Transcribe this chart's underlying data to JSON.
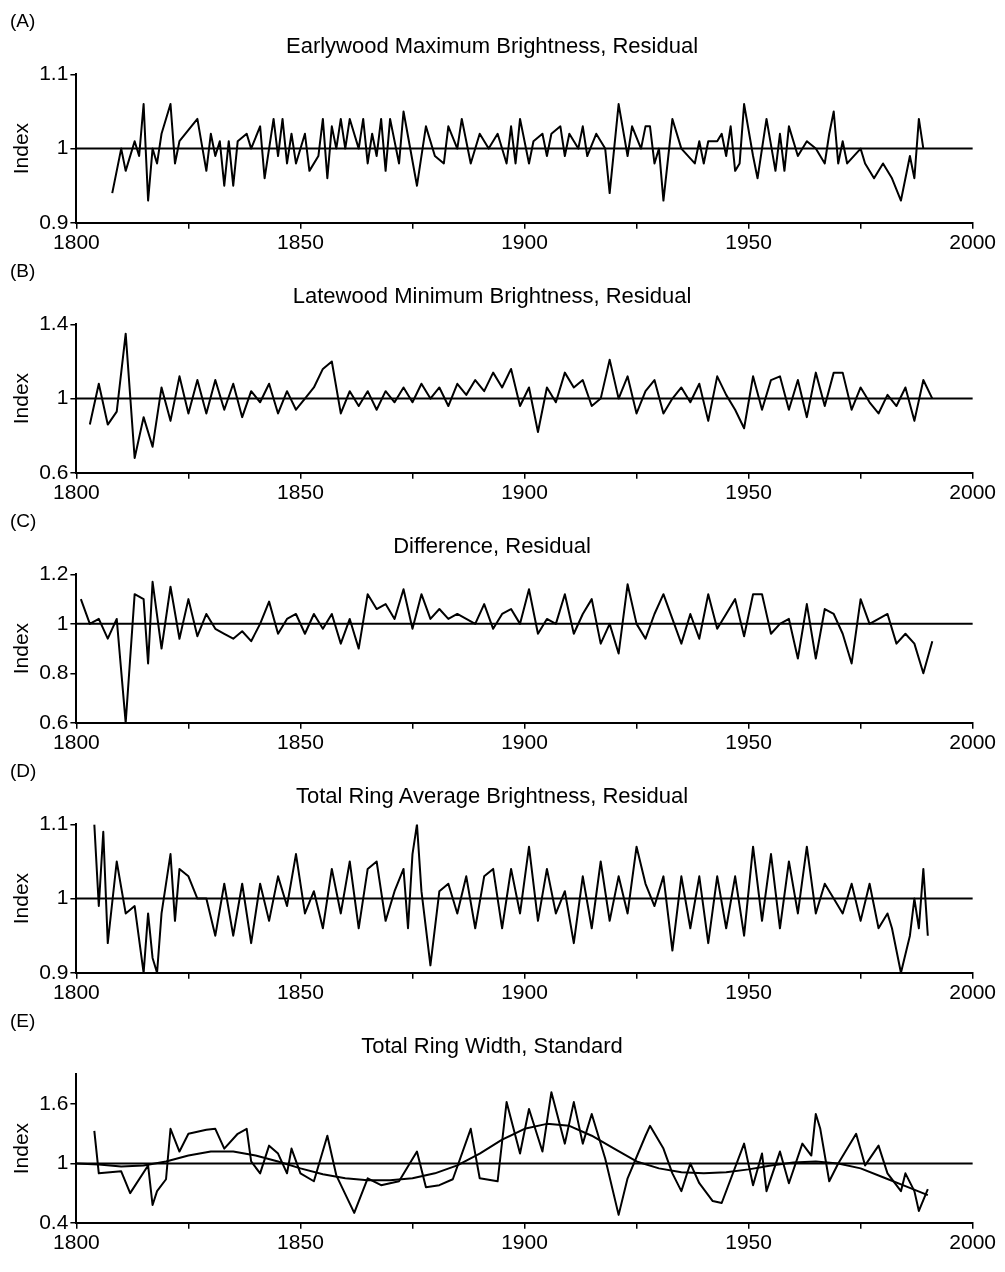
{
  "chart_data": [
    {
      "type": "line",
      "title": "Earlywood Maximum Brightness, Residual",
      "ylabel": "Index",
      "annotations": [
        "(A)"
      ],
      "xlim": [
        1800,
        2000
      ],
      "xticks": [
        1800,
        {
          "value": 1825,
          "label": null
        },
        1850,
        {
          "value": 1875,
          "label": null
        },
        1900,
        {
          "value": 1925,
          "label": null
        },
        1950,
        {
          "value": 1975,
          "label": null
        },
        2000
      ],
      "ylim": [
        0.9,
        1.1
      ],
      "yticks": [
        0.9,
        1,
        1.1
      ],
      "grid": false,
      "ref_lines": [
        {
          "axis": "y",
          "value": 1,
          "color": "#000000"
        }
      ],
      "series": [
        {
          "color": "#000000",
          "x": [
            1808,
            1810,
            1811,
            1813,
            1814,
            1815,
            1816,
            1817,
            1818,
            1819,
            1821,
            1822,
            1823,
            1827,
            1829,
            1830,
            1831,
            1832,
            1833,
            1834,
            1835,
            1836,
            1838,
            1839,
            1841,
            1842,
            1844,
            1845,
            1846,
            1847,
            1848,
            1849,
            1851,
            1852,
            1854,
            1855,
            1856,
            1857,
            1858,
            1859,
            1860,
            1861,
            1863,
            1864,
            1865,
            1866,
            1867,
            1868,
            1869,
            1870,
            1872,
            1873,
            1876,
            1878,
            1880,
            1882,
            1883,
            1885,
            1886,
            1888,
            1890,
            1892,
            1894,
            1896,
            1897,
            1898,
            1899,
            1901,
            1902,
            1904,
            1905,
            1906,
            1908,
            1909,
            1910,
            1912,
            1913,
            1914,
            1916,
            1918,
            1919,
            1920,
            1921,
            1923,
            1924,
            1926,
            1927,
            1928,
            1929,
            1930,
            1931,
            1933,
            1935,
            1938,
            1939,
            1940,
            1941,
            1943,
            1944,
            1945,
            1946,
            1947,
            1948,
            1949,
            1951,
            1952,
            1954,
            1956,
            1957,
            1958,
            1959,
            1961,
            1963,
            1965,
            1967,
            1968,
            1969,
            1970,
            1971,
            1972,
            1975,
            1976,
            1978,
            1980,
            1982,
            1984,
            1986,
            1987,
            1988,
            1989
          ],
          "values": [
            0.94,
            1.0,
            0.97,
            1.01,
            0.99,
            1.06,
            0.93,
            1.0,
            0.98,
            1.02,
            1.06,
            0.98,
            1.01,
            1.04,
            0.97,
            1.02,
            0.99,
            1.01,
            0.95,
            1.01,
            0.95,
            1.01,
            1.02,
            1.0,
            1.03,
            0.96,
            1.04,
            0.99,
            1.04,
            0.98,
            1.02,
            0.98,
            1.02,
            0.97,
            0.99,
            1.04,
            0.96,
            1.03,
            1.0,
            1.04,
            1.0,
            1.04,
            1.0,
            1.04,
            0.98,
            1.02,
            0.99,
            1.04,
            0.97,
            1.04,
            0.98,
            1.05,
            0.95,
            1.03,
            0.99,
            0.98,
            1.03,
            1.0,
            1.04,
            0.98,
            1.02,
            1.0,
            1.02,
            0.98,
            1.03,
            0.98,
            1.04,
            0.98,
            1.01,
            1.02,
            0.99,
            1.02,
            1.03,
            0.99,
            1.02,
            1.0,
            1.03,
            0.99,
            1.02,
            1.0,
            0.94,
            1.0,
            1.06,
            0.99,
            1.03,
            1.0,
            1.03,
            1.03,
            0.98,
            1.0,
            0.93,
            1.04,
            1.0,
            0.98,
            1.01,
            0.98,
            1.01,
            1.01,
            1.02,
            0.99,
            1.03,
            0.97,
            0.98,
            1.06,
            0.99,
            0.96,
            1.04,
            0.97,
            1.02,
            0.97,
            1.03,
            0.99,
            1.01,
            1.0,
            0.98,
            1.02,
            1.05,
            0.98,
            1.01,
            0.98,
            1.0,
            0.98,
            0.96,
            0.98,
            0.96,
            0.93,
            0.99,
            0.96,
            1.04,
            1.0
          ]
        }
      ]
    },
    {
      "type": "line",
      "title": "Latewood Minimum Brightness, Residual",
      "ylabel": "Index",
      "annotations": [
        "(B)"
      ],
      "xlim": [
        1800,
        2000
      ],
      "xticks": [
        1800,
        {
          "value": 1825,
          "label": null
        },
        1850,
        {
          "value": 1875,
          "label": null
        },
        1900,
        {
          "value": 1925,
          "label": null
        },
        1950,
        {
          "value": 1975,
          "label": null
        },
        2000
      ],
      "ylim": [
        0.6,
        1.4
      ],
      "yticks": [
        0.6,
        1,
        1.4
      ],
      "grid": false,
      "ref_lines": [
        {
          "axis": "y",
          "value": 1,
          "color": "#000000"
        }
      ],
      "series": [
        {
          "color": "#000000",
          "x": [
            1803,
            1805,
            1807,
            1809,
            1811,
            1813,
            1815,
            1817,
            1819,
            1821,
            1823,
            1825,
            1827,
            1829,
            1831,
            1833,
            1835,
            1837,
            1839,
            1841,
            1843,
            1845,
            1847,
            1849,
            1851,
            1853,
            1855,
            1857,
            1859,
            1861,
            1863,
            1865,
            1867,
            1869,
            1871,
            1873,
            1875,
            1877,
            1879,
            1881,
            1883,
            1885,
            1887,
            1889,
            1891,
            1893,
            1895,
            1897,
            1899,
            1901,
            1903,
            1905,
            1907,
            1909,
            1911,
            1913,
            1915,
            1917,
            1919,
            1921,
            1923,
            1925,
            1927,
            1929,
            1931,
            1933,
            1935,
            1937,
            1939,
            1941,
            1943,
            1945,
            1947,
            1949,
            1951,
            1953,
            1955,
            1957,
            1959,
            1961,
            1963,
            1965,
            1967,
            1969,
            1971,
            1973,
            1975,
            1977,
            1979,
            1981,
            1983,
            1985,
            1987,
            1989,
            1991
          ],
          "values": [
            0.86,
            1.08,
            0.86,
            0.93,
            1.35,
            0.68,
            0.9,
            0.74,
            1.06,
            0.88,
            1.12,
            0.92,
            1.1,
            0.92,
            1.1,
            0.94,
            1.08,
            0.9,
            1.04,
            0.98,
            1.08,
            0.92,
            1.04,
            0.94,
            1.0,
            1.06,
            1.16,
            1.2,
            0.92,
            1.04,
            0.96,
            1.04,
            0.94,
            1.04,
            0.98,
            1.06,
            0.98,
            1.08,
            1.0,
            1.06,
            0.96,
            1.08,
            1.02,
            1.1,
            1.04,
            1.14,
            1.06,
            1.16,
            0.96,
            1.06,
            0.82,
            1.06,
            0.98,
            1.14,
            1.06,
            1.1,
            0.96,
            1.0,
            1.21,
            1.0,
            1.12,
            0.92,
            1.04,
            1.1,
            0.92,
            1.0,
            1.06,
            0.98,
            1.08,
            0.88,
            1.12,
            1.02,
            0.94,
            0.84,
            1.12,
            0.94,
            1.1,
            1.12,
            0.94,
            1.1,
            0.9,
            1.14,
            0.96,
            1.14,
            1.14,
            0.94,
            1.06,
            0.98,
            0.92,
            1.02,
            0.96,
            1.06,
            0.88,
            1.1,
            1.0
          ]
        }
      ]
    },
    {
      "type": "line",
      "title": "Difference, Residual",
      "ylabel": "Index",
      "annotations": [
        "(C)"
      ],
      "xlim": [
        1800,
        2000
      ],
      "xticks": [
        1800,
        {
          "value": 1825,
          "label": null
        },
        1850,
        {
          "value": 1875,
          "label": null
        },
        1900,
        {
          "value": 1925,
          "label": null
        },
        1950,
        {
          "value": 1975,
          "label": null
        },
        2000
      ],
      "ylim": [
        0.6,
        1.2
      ],
      "yticks": [
        0.6,
        0.8,
        1,
        1.2
      ],
      "grid": false,
      "ref_lines": [
        {
          "axis": "y",
          "value": 1,
          "color": "#000000"
        }
      ],
      "series": [
        {
          "color": "#000000",
          "x": [
            1801,
            1803,
            1805,
            1807,
            1809,
            1811,
            1813,
            1815,
            1816,
            1817,
            1819,
            1821,
            1823,
            1825,
            1827,
            1829,
            1831,
            1833,
            1835,
            1837,
            1839,
            1841,
            1843,
            1845,
            1847,
            1849,
            1851,
            1853,
            1855,
            1857,
            1859,
            1861,
            1863,
            1865,
            1867,
            1869,
            1871,
            1873,
            1875,
            1877,
            1879,
            1881,
            1883,
            1885,
            1887,
            1889,
            1891,
            1893,
            1895,
            1897,
            1899,
            1901,
            1903,
            1905,
            1907,
            1909,
            1911,
            1913,
            1915,
            1917,
            1919,
            1921,
            1923,
            1925,
            1927,
            1929,
            1931,
            1933,
            1935,
            1937,
            1939,
            1941,
            1943,
            1945,
            1947,
            1949,
            1951,
            1953,
            1955,
            1957,
            1959,
            1961,
            1963,
            1965,
            1967,
            1969,
            1971,
            1973,
            1975,
            1977,
            1979,
            1981,
            1983,
            1985,
            1987,
            1989,
            1991
          ],
          "values": [
            1.1,
            1.0,
            1.02,
            0.94,
            1.02,
            0.6,
            1.12,
            1.1,
            0.84,
            1.17,
            0.9,
            1.15,
            0.94,
            1.1,
            0.95,
            1.04,
            0.98,
            0.96,
            0.94,
            0.97,
            0.93,
            1.0,
            1.09,
            0.96,
            1.02,
            1.04,
            0.96,
            1.04,
            0.98,
            1.04,
            0.92,
            1.02,
            0.9,
            1.12,
            1.06,
            1.08,
            1.02,
            1.14,
            0.98,
            1.12,
            1.02,
            1.06,
            1.02,
            1.04,
            1.02,
            1.0,
            1.08,
            0.98,
            1.04,
            1.06,
            1.0,
            1.14,
            0.96,
            1.02,
            1.0,
            1.12,
            0.96,
            1.04,
            1.1,
            0.92,
            1.0,
            0.88,
            1.16,
            1.0,
            0.94,
            1.04,
            1.12,
            1.02,
            0.92,
            1.04,
            0.94,
            1.12,
            0.98,
            1.04,
            1.1,
            0.95,
            1.12,
            1.12,
            0.96,
            1.0,
            1.02,
            0.86,
            1.08,
            0.86,
            1.06,
            1.04,
            0.96,
            0.84,
            1.1,
            1.0,
            1.02,
            1.04,
            0.92,
            0.96,
            0.92,
            0.8,
            0.93
          ]
        }
      ]
    },
    {
      "type": "line",
      "title": "Total Ring Average Brightness, Residual",
      "ylabel": "Index",
      "annotations": [
        "(D)"
      ],
      "xlim": [
        1800,
        2000
      ],
      "xticks": [
        1800,
        {
          "value": 1825,
          "label": null
        },
        1850,
        {
          "value": 1875,
          "label": null
        },
        1900,
        {
          "value": 1925,
          "label": null
        },
        1950,
        {
          "value": 1975,
          "label": null
        },
        2000
      ],
      "ylim": [
        0.9,
        1.1
      ],
      "yticks": [
        0.9,
        1,
        1.1
      ],
      "grid": false,
      "ref_lines": [
        {
          "axis": "y",
          "value": 1,
          "color": "#000000"
        }
      ],
      "series": [
        {
          "color": "#000000",
          "x": [
            1804,
            1805,
            1806,
            1807,
            1809,
            1811,
            1813,
            1815,
            1816,
            1817,
            1818,
            1819,
            1821,
            1822,
            1823,
            1825,
            1827,
            1829,
            1831,
            1833,
            1835,
            1837,
            1839,
            1841,
            1843,
            1845,
            1847,
            1849,
            1851,
            1853,
            1855,
            1857,
            1859,
            1861,
            1863,
            1865,
            1867,
            1869,
            1871,
            1873,
            1874,
            1875,
            1876,
            1877,
            1879,
            1881,
            1883,
            1885,
            1887,
            1889,
            1891,
            1893,
            1895,
            1897,
            1899,
            1901,
            1903,
            1905,
            1907,
            1909,
            1911,
            1913,
            1915,
            1917,
            1919,
            1921,
            1923,
            1925,
            1927,
            1929,
            1931,
            1933,
            1935,
            1937,
            1939,
            1941,
            1943,
            1945,
            1947,
            1949,
            1951,
            1953,
            1955,
            1957,
            1959,
            1961,
            1963,
            1965,
            1967,
            1969,
            1971,
            1973,
            1975,
            1977,
            1979,
            1981,
            1982,
            1984,
            1986,
            1987,
            1988,
            1989,
            1990
          ],
          "values": [
            1.1,
            0.99,
            1.09,
            0.94,
            1.05,
            0.98,
            0.99,
            0.9,
            0.98,
            0.92,
            0.9,
            0.98,
            1.06,
            0.97,
            1.04,
            1.03,
            1.0,
            1.0,
            0.95,
            1.02,
            0.95,
            1.02,
            0.94,
            1.02,
            0.97,
            1.03,
            0.99,
            1.06,
            0.98,
            1.01,
            0.96,
            1.04,
            0.98,
            1.05,
            0.96,
            1.04,
            1.05,
            0.97,
            1.01,
            1.04,
            0.96,
            1.06,
            1.1,
            1.01,
            0.91,
            1.01,
            1.02,
            0.98,
            1.03,
            0.96,
            1.03,
            1.04,
            0.96,
            1.04,
            0.98,
            1.07,
            0.97,
            1.04,
            0.98,
            1.01,
            0.94,
            1.03,
            0.96,
            1.05,
            0.97,
            1.03,
            0.98,
            1.07,
            1.02,
            0.99,
            1.03,
            0.93,
            1.03,
            0.96,
            1.03,
            0.94,
            1.03,
            0.96,
            1.03,
            0.95,
            1.07,
            0.97,
            1.06,
            0.96,
            1.05,
            0.98,
            1.07,
            0.98,
            1.02,
            1.0,
            0.98,
            1.02,
            0.97,
            1.02,
            0.96,
            0.98,
            0.96,
            0.9,
            0.95,
            1.0,
            0.96,
            1.04,
            0.95
          ]
        }
      ]
    },
    {
      "type": "line",
      "title": "Total Ring Width, Standard",
      "ylabel": "Index",
      "annotations": [
        "(E)"
      ],
      "xlim": [
        1800,
        2000
      ],
      "xticks": [
        1800,
        {
          "value": 1825,
          "label": null
        },
        1850,
        {
          "value": 1875,
          "label": null
        },
        1900,
        {
          "value": 1925,
          "label": null
        },
        1950,
        {
          "value": 1975,
          "label": null
        },
        2000
      ],
      "ylim": [
        0.4,
        1.9
      ],
      "yticks": [
        0.4,
        1,
        1.6
      ],
      "grid": false,
      "ref_lines": [
        {
          "axis": "y",
          "value": 1,
          "color": "#000000"
        }
      ],
      "series": [
        {
          "color": "#000000",
          "x": [
            1804,
            1805,
            1810,
            1812,
            1816,
            1817,
            1818,
            1820,
            1821,
            1823,
            1825,
            1829,
            1831,
            1833,
            1836,
            1838,
            1839,
            1841,
            1843,
            1845,
            1847,
            1848,
            1850,
            1853,
            1856,
            1858,
            1862,
            1865,
            1868,
            1872,
            1876,
            1878,
            1881,
            1884,
            1888,
            1890,
            1894,
            1896,
            1899,
            1901,
            1904,
            1906,
            1909,
            1911,
            1913,
            1915,
            1918,
            1921,
            1923,
            1927,
            1928,
            1931,
            1933,
            1935,
            1937,
            1939,
            1942,
            1944,
            1949,
            1951,
            1953,
            1954,
            1957,
            1959,
            1962,
            1964,
            1965,
            1966,
            1968,
            1970,
            1974,
            1976,
            1979,
            1981,
            1984,
            1985,
            1987,
            1988,
            1990
          ],
          "values": [
            1.33,
            0.9,
            0.92,
            0.7,
            0.98,
            0.58,
            0.72,
            0.84,
            1.35,
            1.12,
            1.3,
            1.34,
            1.35,
            1.15,
            1.3,
            1.35,
            1.02,
            0.9,
            1.18,
            1.1,
            0.9,
            1.15,
            0.9,
            0.82,
            1.28,
            0.88,
            0.5,
            0.85,
            0.78,
            0.82,
            1.12,
            0.76,
            0.78,
            0.84,
            1.35,
            0.85,
            0.82,
            1.62,
            1.1,
            1.55,
            1.12,
            1.72,
            1.2,
            1.62,
            1.2,
            1.5,
            1.05,
            0.48,
            0.85,
            1.28,
            1.38,
            1.15,
            0.9,
            0.72,
            1.0,
            0.8,
            0.62,
            0.6,
            1.2,
            0.78,
            1.1,
            0.72,
            1.12,
            0.8,
            1.2,
            1.08,
            1.5,
            1.35,
            0.82,
            1.0,
            1.3,
            0.98,
            1.18,
            0.9,
            0.72,
            0.9,
            0.72,
            0.52,
            0.74
          ]
        },
        {
          "color": "#000000",
          "x": [
            1800,
            1805,
            1810,
            1815,
            1820,
            1825,
            1830,
            1835,
            1840,
            1845,
            1850,
            1855,
            1860,
            1865,
            1870,
            1875,
            1880,
            1885,
            1890,
            1895,
            1900,
            1905,
            1910,
            1915,
            1920,
            1925,
            1930,
            1935,
            1940,
            1945,
            1950,
            1955,
            1960,
            1965,
            1970,
            1975,
            1980,
            1985,
            1990
          ],
          "values": [
            1.0,
            0.99,
            0.97,
            0.98,
            1.02,
            1.08,
            1.12,
            1.12,
            1.08,
            1.02,
            0.95,
            0.89,
            0.85,
            0.83,
            0.83,
            0.85,
            0.9,
            0.98,
            1.1,
            1.24,
            1.35,
            1.4,
            1.38,
            1.28,
            1.15,
            1.02,
            0.95,
            0.91,
            0.9,
            0.91,
            0.94,
            0.98,
            1.01,
            1.02,
            1.0,
            0.95,
            0.86,
            0.77,
            0.68
          ]
        }
      ]
    }
  ]
}
